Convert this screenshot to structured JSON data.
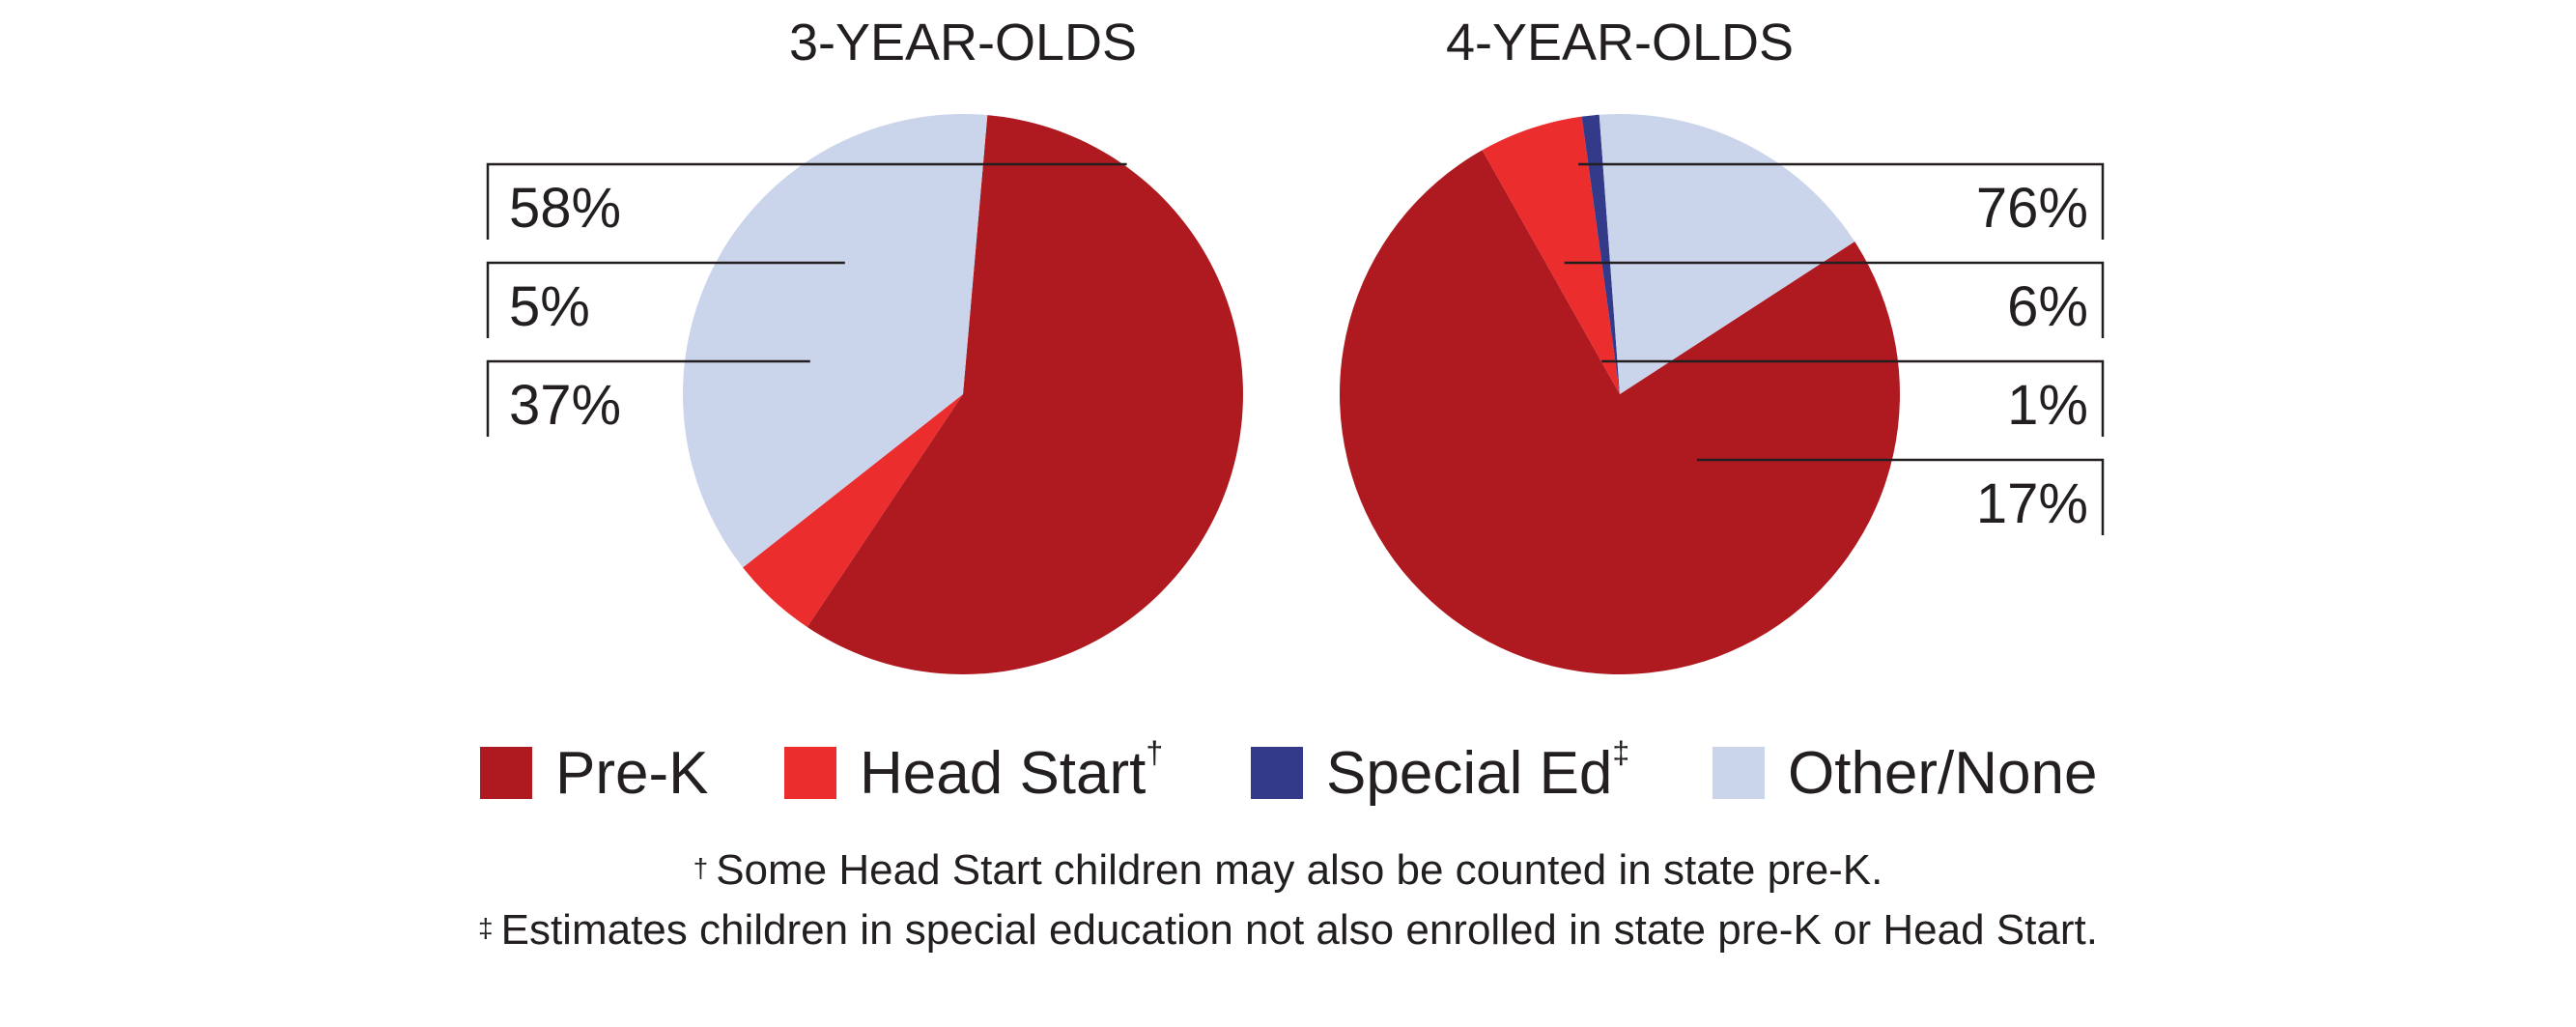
{
  "chart_data": [
    {
      "type": "pie",
      "title": "3-YEAR-OLDS",
      "categories": [
        "Pre-K",
        "Head Start",
        "Other/None"
      ],
      "values": [
        58,
        5,
        37
      ],
      "labels": [
        "58%",
        "5%",
        "37%"
      ],
      "colors": [
        "#ae1a20",
        "#eb2d2e",
        "#cad4ea"
      ]
    },
    {
      "type": "pie",
      "title": "4-YEAR-OLDS",
      "categories": [
        "Pre-K",
        "Head Start",
        "Special Ed",
        "Other/None"
      ],
      "values": [
        76,
        6,
        1,
        17
      ],
      "labels": [
        "76%",
        "6%",
        "1%",
        "17%"
      ],
      "colors": [
        "#ae1a20",
        "#eb2d2e",
        "#323a89",
        "#cad4ea"
      ]
    }
  ],
  "legend": {
    "placement": "bottom",
    "items": [
      {
        "label": "Pre-K",
        "mark": "",
        "color": "#ae1a20"
      },
      {
        "label": "Head Start",
        "mark": "†",
        "color": "#eb2d2e"
      },
      {
        "label": "Special Ed",
        "mark": "‡",
        "color": "#323a89"
      },
      {
        "label": "Other/None",
        "mark": "",
        "color": "#cad4ea"
      }
    ]
  },
  "footnotes": [
    {
      "mark": "†",
      "text": "Some Head Start children may also be counted in state pre-K."
    },
    {
      "mark": "‡",
      "text": "Estimates children in special education not also enrolled in state pre-K or Head Start."
    }
  ]
}
